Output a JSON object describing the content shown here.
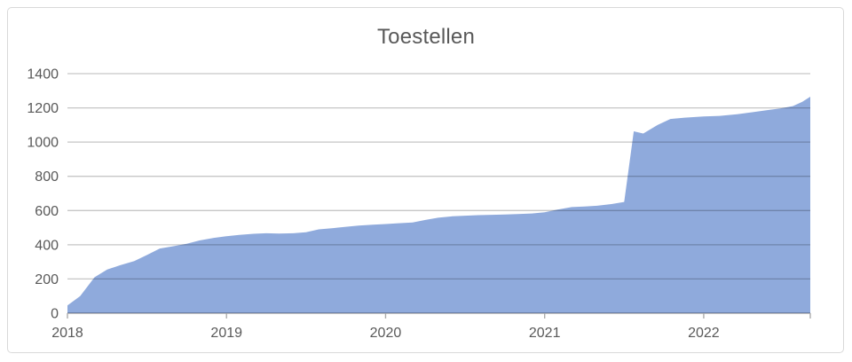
{
  "chart_data": {
    "type": "area",
    "title": "Toestellen",
    "xlabel": "",
    "ylabel": "",
    "xlim": [
      2018,
      2022.67
    ],
    "ylim": [
      0,
      1400
    ],
    "y_ticks": [
      0,
      200,
      400,
      600,
      800,
      1000,
      1200,
      1400
    ],
    "x_tick_positions": [
      2018,
      2019,
      2020,
      2021,
      2022
    ],
    "x_tick_labels": [
      "2018",
      "2019",
      "2020",
      "2021",
      "2022"
    ],
    "grid": "horizontal",
    "legend": "none",
    "series": [
      {
        "name": "Toestellen",
        "points": [
          {
            "x": 2018.0,
            "y": 45
          },
          {
            "x": 2018.08,
            "y": 100
          },
          {
            "x": 2018.17,
            "y": 210
          },
          {
            "x": 2018.25,
            "y": 255
          },
          {
            "x": 2018.33,
            "y": 280
          },
          {
            "x": 2018.42,
            "y": 305
          },
          {
            "x": 2018.5,
            "y": 340
          },
          {
            "x": 2018.58,
            "y": 378
          },
          {
            "x": 2018.67,
            "y": 392
          },
          {
            "x": 2018.75,
            "y": 406
          },
          {
            "x": 2018.83,
            "y": 425
          },
          {
            "x": 2018.92,
            "y": 440
          },
          {
            "x": 2019.0,
            "y": 450
          },
          {
            "x": 2019.08,
            "y": 458
          },
          {
            "x": 2019.17,
            "y": 464
          },
          {
            "x": 2019.25,
            "y": 467
          },
          {
            "x": 2019.33,
            "y": 465
          },
          {
            "x": 2019.42,
            "y": 467
          },
          {
            "x": 2019.5,
            "y": 473
          },
          {
            "x": 2019.58,
            "y": 490
          },
          {
            "x": 2019.67,
            "y": 497
          },
          {
            "x": 2019.75,
            "y": 505
          },
          {
            "x": 2019.83,
            "y": 512
          },
          {
            "x": 2019.92,
            "y": 517
          },
          {
            "x": 2020.0,
            "y": 521
          },
          {
            "x": 2020.08,
            "y": 526
          },
          {
            "x": 2020.17,
            "y": 530
          },
          {
            "x": 2020.25,
            "y": 545
          },
          {
            "x": 2020.33,
            "y": 558
          },
          {
            "x": 2020.42,
            "y": 566
          },
          {
            "x": 2020.5,
            "y": 570
          },
          {
            "x": 2020.58,
            "y": 573
          },
          {
            "x": 2020.67,
            "y": 575
          },
          {
            "x": 2020.75,
            "y": 577
          },
          {
            "x": 2020.83,
            "y": 579
          },
          {
            "x": 2020.92,
            "y": 583
          },
          {
            "x": 2021.0,
            "y": 590
          },
          {
            "x": 2021.08,
            "y": 605
          },
          {
            "x": 2021.17,
            "y": 620
          },
          {
            "x": 2021.25,
            "y": 624
          },
          {
            "x": 2021.33,
            "y": 628
          },
          {
            "x": 2021.42,
            "y": 638
          },
          {
            "x": 2021.5,
            "y": 650
          },
          {
            "x": 2021.56,
            "y": 1063
          },
          {
            "x": 2021.62,
            "y": 1050
          },
          {
            "x": 2021.71,
            "y": 1100
          },
          {
            "x": 2021.79,
            "y": 1135
          },
          {
            "x": 2021.88,
            "y": 1143
          },
          {
            "x": 2022.0,
            "y": 1150
          },
          {
            "x": 2022.1,
            "y": 1153
          },
          {
            "x": 2022.21,
            "y": 1163
          },
          {
            "x": 2022.31,
            "y": 1175
          },
          {
            "x": 2022.4,
            "y": 1187
          },
          {
            "x": 2022.48,
            "y": 1196
          },
          {
            "x": 2022.56,
            "y": 1210
          },
          {
            "x": 2022.62,
            "y": 1235
          },
          {
            "x": 2022.67,
            "y": 1265
          }
        ]
      }
    ]
  },
  "style": {
    "fill_color": "#8FAADC",
    "gridline_color": "#C6C6C6",
    "axis_line_color": "#ACACAC",
    "tick_label_color": "#595959",
    "title_color": "#595959",
    "border_color": "#D9D9D9",
    "background_color": "#FFFFFF"
  }
}
